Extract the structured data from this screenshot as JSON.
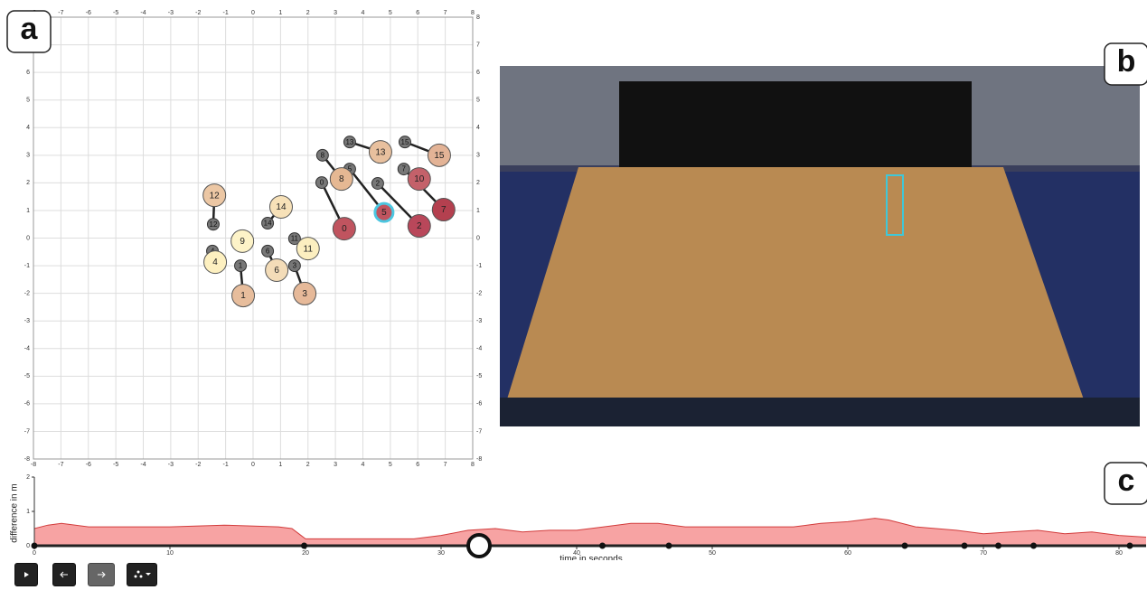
{
  "panels": {
    "a": "a",
    "b": "b",
    "c": "c"
  },
  "formation": {
    "xlim": [
      -8,
      8
    ],
    "ylim": [
      -8,
      8
    ],
    "xticks": [
      -8,
      -7,
      -6,
      -5,
      -4,
      -3,
      -2,
      -1,
      0,
      1,
      2,
      3,
      4,
      5,
      6,
      7,
      8
    ],
    "yticks": [
      -8,
      -7,
      -6,
      -5,
      -4,
      -3,
      -2,
      -1,
      0,
      1,
      2,
      3,
      4,
      5,
      6,
      7,
      8
    ],
    "selected": 5,
    "dancers": [
      {
        "label": "0",
        "x": 3.32,
        "y": 0.34,
        "prev_x": 2.5,
        "prev_y": 2.01,
        "color": "#c0545f"
      },
      {
        "label": "1",
        "x": -0.36,
        "y": -2.08,
        "prev_x": -0.46,
        "prev_y": -1.0,
        "color": "#e7bd9c"
      },
      {
        "label": "2",
        "x": 6.05,
        "y": 0.44,
        "prev_x": 4.54,
        "prev_y": 1.98,
        "color": "#b9475a"
      },
      {
        "label": "3",
        "x": 1.88,
        "y": -2.01,
        "prev_x": 1.51,
        "prev_y": -1.0,
        "color": "#e6b999"
      },
      {
        "label": "4",
        "x": -1.38,
        "y": -0.87,
        "prev_x": -1.48,
        "prev_y": -0.47,
        "color": "#fdf0c0"
      },
      {
        "label": "5",
        "x": 4.77,
        "y": 0.93,
        "prev_x": 3.52,
        "prev_y": 2.5,
        "color": "#c0545f"
      },
      {
        "label": "6",
        "x": 0.86,
        "y": -1.16,
        "prev_x": 0.53,
        "prev_y": -0.47,
        "color": "#f3dcb8"
      },
      {
        "label": "7",
        "x": 6.94,
        "y": 1.03,
        "prev_x": 5.49,
        "prev_y": 2.5,
        "color": "#b4404f"
      },
      {
        "label": "8",
        "x": 3.22,
        "y": 2.14,
        "prev_x": 2.53,
        "prev_y": 3.0,
        "color": "#e5b893"
      },
      {
        "label": "9",
        "x": -0.39,
        "y": -0.11,
        "prev_x": -0.39,
        "prev_y": -0.11,
        "color": "#fdf3c8"
      },
      {
        "label": "10",
        "x": 6.05,
        "y": 2.14,
        "prev_x": 6.05,
        "prev_y": 2.14,
        "color": "#c4616a"
      },
      {
        "label": "11",
        "x": 2.0,
        "y": -0.38,
        "prev_x": 1.51,
        "prev_y": -0.02,
        "color": "#fcefc0"
      },
      {
        "label": "12",
        "x": -1.41,
        "y": 1.55,
        "prev_x": -1.45,
        "prev_y": 0.5,
        "color": "#ecc7a4"
      },
      {
        "label": "13",
        "x": 4.64,
        "y": 3.12,
        "prev_x": 3.52,
        "prev_y": 3.48,
        "color": "#e8c09e"
      },
      {
        "label": "14",
        "x": 1.02,
        "y": 1.13,
        "prev_x": 0.53,
        "prev_y": 0.54,
        "color": "#f7e1b8"
      },
      {
        "label": "15",
        "x": 6.78,
        "y": 3.0,
        "prev_x": 5.53,
        "prev_y": 3.48,
        "color": "#e3b396"
      }
    ]
  },
  "timeline": {
    "ylabel": "difference in m",
    "xlabel": "time in seconds",
    "xlim": [
      0,
      82
    ],
    "ylim": [
      0,
      2
    ],
    "xticks": [
      0,
      10,
      20,
      30,
      40,
      50,
      60,
      70,
      80
    ],
    "yticks": [
      0,
      1,
      2
    ],
    "color": "#f7a3a3",
    "time": [
      0,
      1,
      2,
      4,
      6,
      10,
      14,
      18,
      19,
      19.5,
      20,
      24,
      28,
      30,
      32,
      34,
      36,
      38,
      40,
      42,
      44,
      46,
      48,
      52,
      56,
      58,
      60,
      62,
      63,
      65,
      68,
      70,
      72,
      74,
      76,
      78,
      80,
      82
    ],
    "difference": [
      0.5,
      0.6,
      0.65,
      0.55,
      0.55,
      0.55,
      0.6,
      0.55,
      0.5,
      0.35,
      0.2,
      0.2,
      0.2,
      0.3,
      0.45,
      0.5,
      0.4,
      0.45,
      0.45,
      0.55,
      0.65,
      0.65,
      0.55,
      0.55,
      0.55,
      0.65,
      0.7,
      0.8,
      0.75,
      0.55,
      0.45,
      0.35,
      0.4,
      0.45,
      0.35,
      0.4,
      0.3,
      0.25
    ],
    "keyframes": [
      0,
      19.9,
      41.9,
      46.8,
      64.2,
      68.6,
      71.1,
      73.7,
      80.8
    ],
    "current_time": 32.8
  }
}
